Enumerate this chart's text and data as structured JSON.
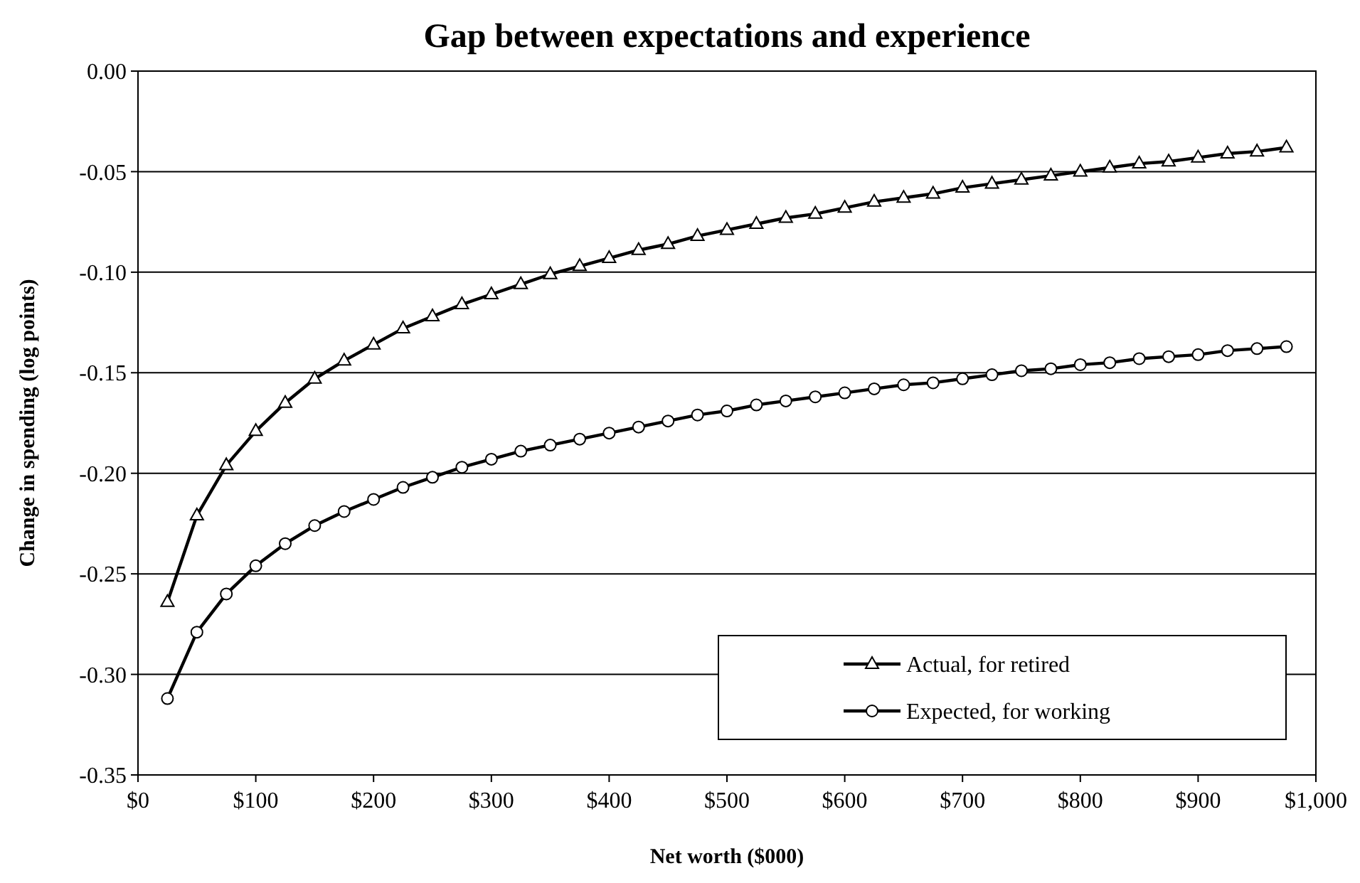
{
  "chart_data": {
    "type": "line",
    "title": "Gap between expectations and experience",
    "xlabel": "Net worth ($000)",
    "ylabel": "Change in spending (log points)",
    "x": [
      25,
      50,
      75,
      100,
      125,
      150,
      175,
      200,
      225,
      250,
      275,
      300,
      325,
      350,
      375,
      400,
      425,
      450,
      475,
      500,
      525,
      550,
      575,
      600,
      625,
      650,
      675,
      700,
      725,
      750,
      775,
      800,
      825,
      850,
      875,
      900,
      925,
      950,
      975
    ],
    "series": [
      {
        "name": "Actual, for retired",
        "color": "#000000",
        "marker": "triangle",
        "values": [
          -0.264,
          -0.221,
          -0.196,
          -0.179,
          -0.165,
          -0.153,
          -0.144,
          -0.136,
          -0.128,
          -0.122,
          -0.116,
          -0.111,
          -0.106,
          -0.101,
          -0.097,
          -0.093,
          -0.089,
          -0.086,
          -0.082,
          -0.079,
          -0.076,
          -0.073,
          -0.071,
          -0.068,
          -0.065,
          -0.063,
          -0.061,
          -0.058,
          -0.056,
          -0.054,
          -0.052,
          -0.05,
          -0.048,
          -0.046,
          -0.045,
          -0.043,
          -0.041,
          -0.04,
          -0.038
        ]
      },
      {
        "name": "Expected, for working",
        "color": "#000000",
        "marker": "circle",
        "values": [
          -0.312,
          -0.279,
          -0.26,
          -0.246,
          -0.235,
          -0.226,
          -0.219,
          -0.213,
          -0.207,
          -0.202,
          -0.197,
          -0.193,
          -0.189,
          -0.186,
          -0.183,
          -0.18,
          -0.177,
          -0.174,
          -0.171,
          -0.169,
          -0.166,
          -0.164,
          -0.162,
          -0.16,
          -0.158,
          -0.156,
          -0.155,
          -0.153,
          -0.151,
          -0.149,
          -0.148,
          -0.146,
          -0.145,
          -0.143,
          -0.142,
          -0.141,
          -0.139,
          -0.138,
          -0.137
        ]
      }
    ],
    "xlim": [
      0,
      1000
    ],
    "xticks": [
      {
        "value": 0,
        "label": "$0"
      },
      {
        "value": 100,
        "label": "$100"
      },
      {
        "value": 200,
        "label": "$200"
      },
      {
        "value": 300,
        "label": "$300"
      },
      {
        "value": 400,
        "label": "$400"
      },
      {
        "value": 500,
        "label": "$500"
      },
      {
        "value": 600,
        "label": "$600"
      },
      {
        "value": 700,
        "label": "$700"
      },
      {
        "value": 800,
        "label": "$800"
      },
      {
        "value": 900,
        "label": "$900"
      },
      {
        "value": 1000,
        "label": "$1,000"
      }
    ],
    "ylim": [
      -0.35,
      0
    ],
    "yticks": [
      {
        "value": 0,
        "label": "0.00"
      },
      {
        "value": -0.05,
        "label": "-0.05"
      },
      {
        "value": -0.1,
        "label": "-0.10"
      },
      {
        "value": -0.15,
        "label": "-0.15"
      },
      {
        "value": -0.2,
        "label": "-0.20"
      },
      {
        "value": -0.25,
        "label": "-0.25"
      },
      {
        "value": -0.3,
        "label": "-0.30"
      },
      {
        "value": -0.35,
        "label": "-0.35"
      }
    ],
    "grid": "y",
    "legend": "bottom right",
    "line_style": "solid"
  }
}
